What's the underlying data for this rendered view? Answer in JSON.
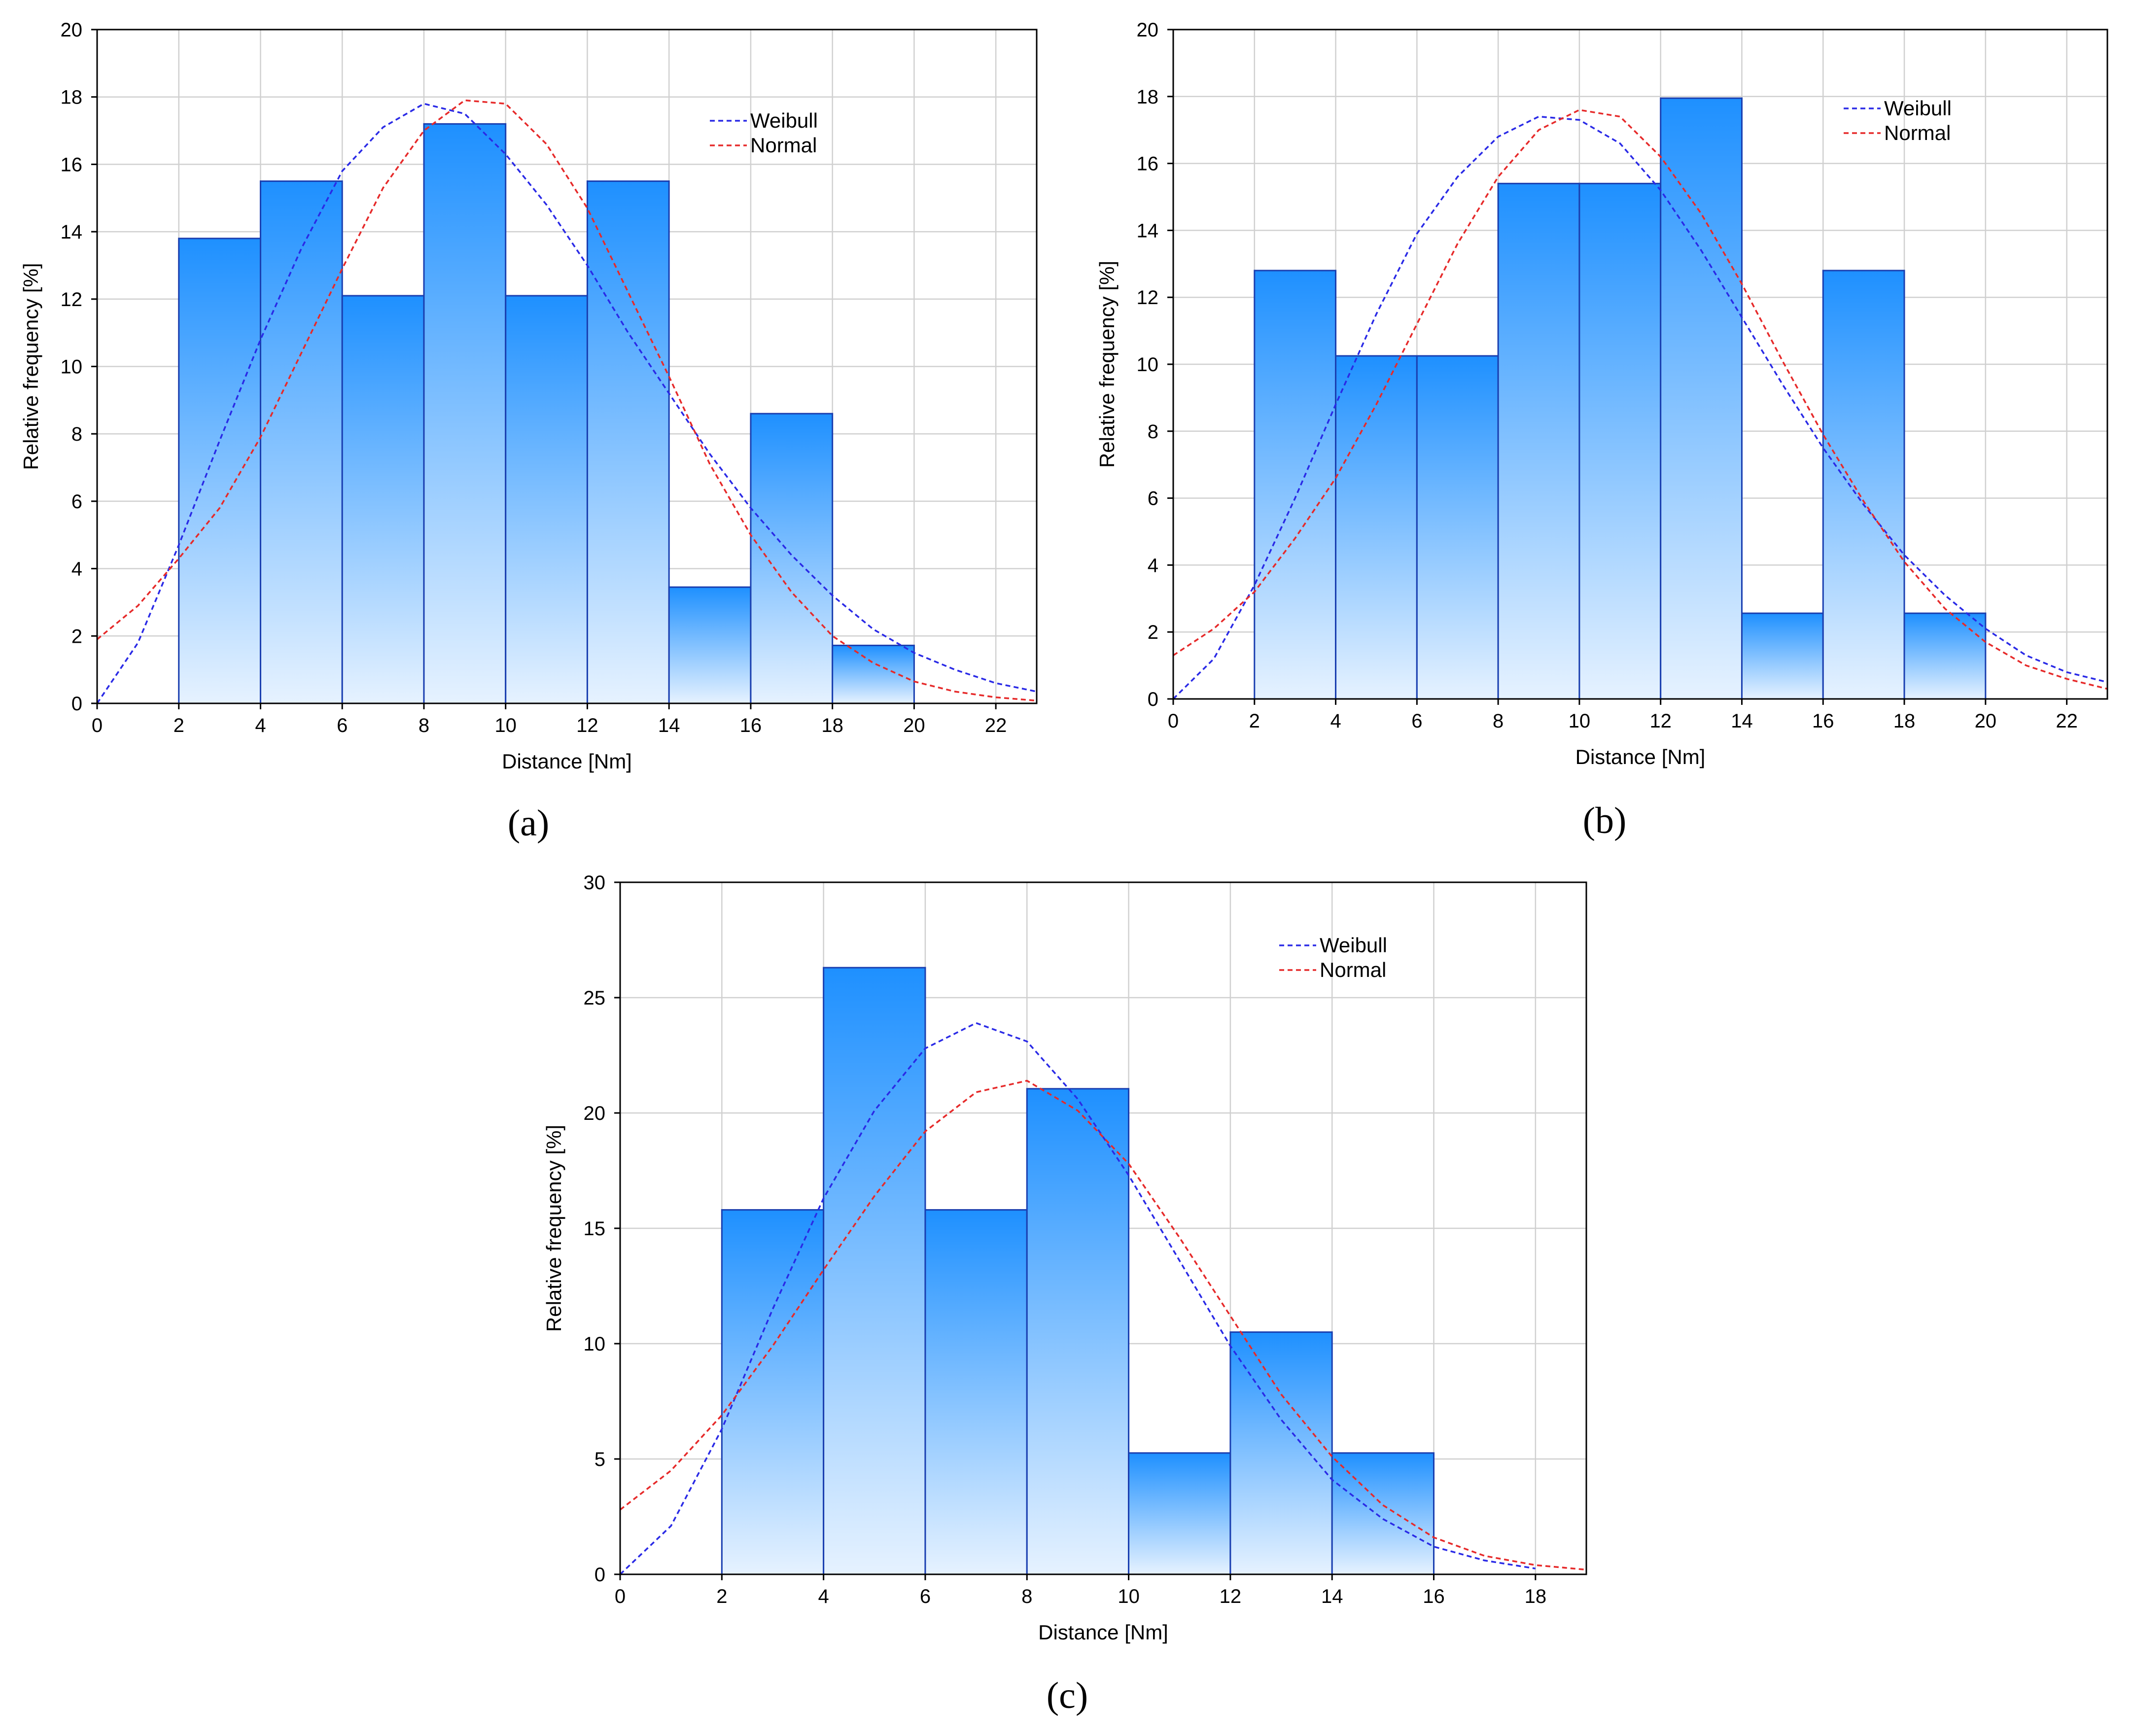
{
  "colors": {
    "bar_top": "#1e90ff",
    "bar_bottom": "#e6f2ff",
    "bar_edge": "#1a3fb0",
    "grid": "#d0d0d0",
    "weibull": "#2a2ae6",
    "normal": "#e62a2a"
  },
  "chart_data": [
    {
      "id": "a",
      "panel_label": "(a)",
      "type": "bar",
      "title": "",
      "xlabel": "Distance [Nm]",
      "ylabel": "Relative frequency [%]",
      "xlim": [
        0,
        23
      ],
      "ylim": [
        0,
        20
      ],
      "xticks": [
        0,
        2,
        4,
        6,
        8,
        10,
        12,
        14,
        16,
        18,
        20,
        22
      ],
      "yticks": [
        0,
        2,
        4,
        6,
        8,
        10,
        12,
        14,
        16,
        18,
        20
      ],
      "bins": [
        [
          2,
          4
        ],
        [
          4,
          6
        ],
        [
          6,
          8
        ],
        [
          8,
          10
        ],
        [
          10,
          12
        ],
        [
          12,
          14
        ],
        [
          14,
          16
        ],
        [
          16,
          18
        ],
        [
          18,
          20
        ]
      ],
      "values": [
        13.8,
        15.5,
        12.1,
        17.2,
        12.1,
        15.5,
        3.45,
        8.6,
        1.72
      ],
      "legend": [
        "Weibull",
        "Normal"
      ],
      "legend_position": "top-right",
      "series": [
        {
          "name": "Weibull",
          "x": [
            0,
            1,
            2,
            3,
            4,
            5,
            6,
            7,
            8,
            9,
            10,
            11,
            12,
            13,
            14,
            15,
            16,
            17,
            18,
            19,
            20,
            21,
            22,
            23
          ],
          "y": [
            0,
            1.8,
            4.7,
            7.8,
            10.8,
            13.5,
            15.8,
            17.1,
            17.8,
            17.5,
            16.3,
            14.8,
            13.0,
            11.0,
            9.2,
            7.4,
            5.8,
            4.4,
            3.2,
            2.2,
            1.5,
            1.0,
            0.6,
            0.35
          ]
        },
        {
          "name": "Normal",
          "x": [
            0,
            1,
            2,
            3,
            4,
            5,
            6,
            7,
            8,
            9,
            10,
            11,
            12,
            13,
            14,
            15,
            16,
            17,
            18,
            19,
            20,
            21,
            22,
            23
          ],
          "y": [
            1.9,
            2.9,
            4.3,
            5.8,
            7.9,
            10.4,
            12.9,
            15.3,
            17.0,
            17.9,
            17.8,
            16.6,
            14.7,
            12.2,
            9.7,
            7.1,
            5.0,
            3.3,
            2.0,
            1.2,
            0.65,
            0.35,
            0.18,
            0.08
          ]
        }
      ]
    },
    {
      "id": "b",
      "panel_label": "(b)",
      "type": "bar",
      "title": "",
      "xlabel": "Distance [Nm]",
      "ylabel": "Relative frequency [%]",
      "xlim": [
        0,
        23
      ],
      "ylim": [
        0,
        20
      ],
      "xticks": [
        0,
        2,
        4,
        6,
        8,
        10,
        12,
        14,
        16,
        18,
        20,
        22
      ],
      "yticks": [
        0,
        2,
        4,
        6,
        8,
        10,
        12,
        14,
        16,
        18,
        20
      ],
      "bins": [
        [
          2,
          4
        ],
        [
          4,
          6
        ],
        [
          6,
          8
        ],
        [
          8,
          10
        ],
        [
          10,
          12
        ],
        [
          12,
          14
        ],
        [
          14,
          16
        ],
        [
          16,
          18
        ],
        [
          18,
          20
        ]
      ],
      "values": [
        12.8,
        10.25,
        10.25,
        15.4,
        15.4,
        17.95,
        2.56,
        12.8,
        2.56
      ],
      "legend": [
        "Weibull",
        "Normal"
      ],
      "legend_position": "top-right",
      "series": [
        {
          "name": "Weibull",
          "x": [
            0,
            1,
            2,
            3,
            4,
            5,
            6,
            7,
            8,
            9,
            10,
            11,
            12,
            13,
            14,
            15,
            16,
            17,
            18,
            19,
            20,
            21,
            22,
            23
          ],
          "y": [
            0,
            1.2,
            3.4,
            6.0,
            8.8,
            11.5,
            13.9,
            15.6,
            16.8,
            17.4,
            17.3,
            16.6,
            15.2,
            13.4,
            11.4,
            9.4,
            7.5,
            5.8,
            4.3,
            3.1,
            2.1,
            1.3,
            0.8,
            0.5
          ]
        },
        {
          "name": "Normal",
          "x": [
            0,
            1,
            2,
            3,
            4,
            5,
            6,
            7,
            8,
            9,
            10,
            11,
            12,
            13,
            14,
            15,
            16,
            17,
            18,
            19,
            20,
            21,
            22,
            23
          ],
          "y": [
            1.3,
            2.1,
            3.2,
            4.8,
            6.6,
            8.8,
            11.2,
            13.6,
            15.6,
            17.0,
            17.6,
            17.4,
            16.2,
            14.5,
            12.4,
            10.1,
            7.9,
            5.9,
            4.1,
            2.7,
            1.7,
            1.0,
            0.6,
            0.3
          ]
        }
      ]
    },
    {
      "id": "c",
      "panel_label": "(c)",
      "type": "bar",
      "title": "",
      "xlabel": "Distance [Nm]",
      "ylabel": "Relative frequency [%]",
      "xlim": [
        0,
        19
      ],
      "ylim": [
        0,
        30
      ],
      "xticks": [
        0,
        2,
        4,
        6,
        8,
        10,
        12,
        14,
        16,
        18
      ],
      "yticks": [
        0,
        5,
        10,
        15,
        20,
        25,
        30
      ],
      "bins": [
        [
          2,
          4
        ],
        [
          4,
          6
        ],
        [
          6,
          8
        ],
        [
          8,
          10
        ],
        [
          10,
          12
        ],
        [
          12,
          14
        ],
        [
          14,
          16
        ]
      ],
      "values": [
        15.8,
        26.3,
        15.8,
        21.05,
        5.26,
        10.5,
        5.26
      ],
      "legend": [
        "Weibull",
        "Normal"
      ],
      "legend_position": "top-right",
      "series": [
        {
          "name": "Weibull",
          "x": [
            0,
            1,
            2,
            3,
            4,
            5,
            6,
            7,
            8,
            9,
            10,
            11,
            12,
            13,
            14,
            15,
            16,
            17,
            18
          ],
          "y": [
            0,
            2.1,
            6.3,
            11.5,
            16.3,
            20.1,
            22.8,
            23.9,
            23.1,
            20.6,
            17.3,
            13.6,
            9.9,
            6.7,
            4.1,
            2.4,
            1.2,
            0.6,
            0.25
          ]
        },
        {
          "name": "Normal",
          "x": [
            0,
            1,
            2,
            3,
            4,
            5,
            6,
            7,
            8,
            9,
            10,
            11,
            12,
            13,
            14,
            15,
            16,
            17,
            18,
            19
          ],
          "y": [
            2.8,
            4.5,
            6.9,
            9.9,
            13.2,
            16.4,
            19.2,
            20.9,
            21.4,
            20.1,
            17.8,
            14.6,
            11.2,
            7.8,
            5.1,
            3.0,
            1.6,
            0.8,
            0.4,
            0.2
          ]
        }
      ]
    }
  ]
}
